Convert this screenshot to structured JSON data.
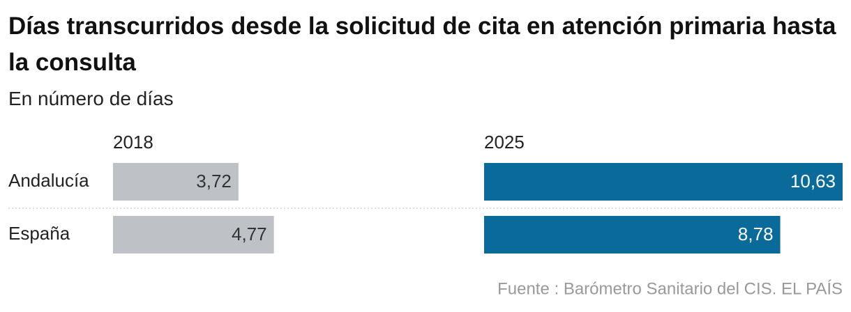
{
  "chart_data": {
    "type": "bar",
    "title": "Días transcurridos desde la solicitud de cita en atención primaria hasta la consulta",
    "subtitle": "En número de días",
    "source": "Fuente : Barómetro Sanitario del CIS. EL PAÍS",
    "categories": [
      "Andalucía",
      "España"
    ],
    "series": [
      {
        "name": "2018",
        "color": "#bec2c6",
        "values": [
          3.72,
          4.77
        ],
        "value_labels": [
          "3,72",
          "4,77"
        ]
      },
      {
        "name": "2025",
        "color": "#0a6a9a",
        "values": [
          10.63,
          8.78
        ],
        "value_labels": [
          "10,63",
          "8,78"
        ]
      }
    ]
  }
}
